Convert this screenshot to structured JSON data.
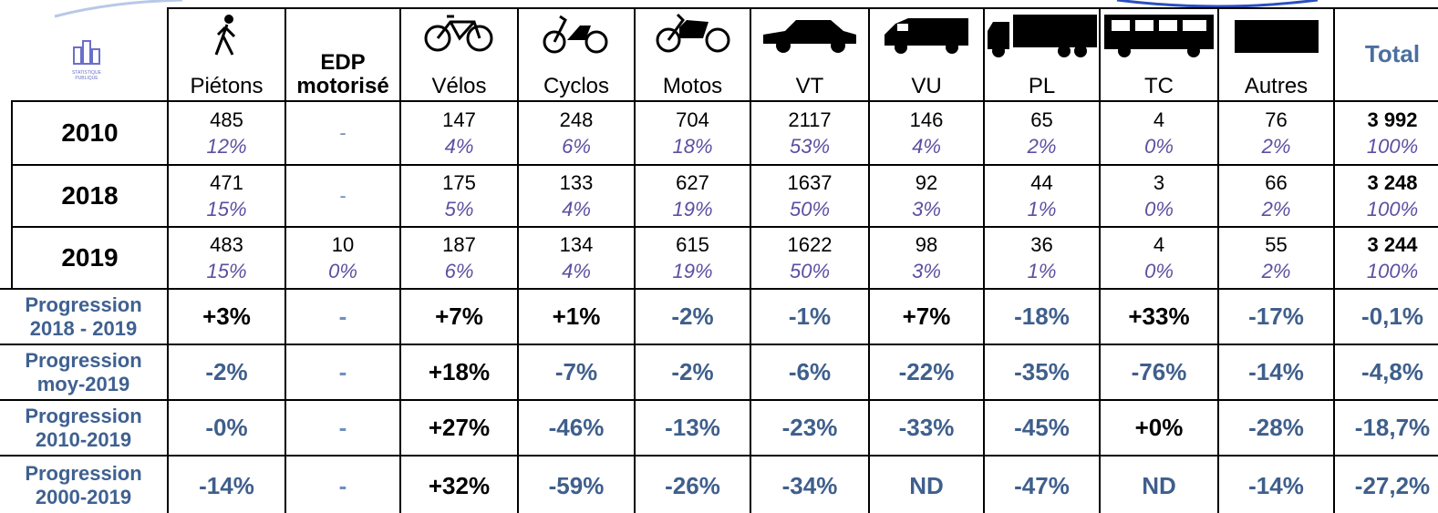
{
  "logo": "STATISTIQUE PUBLIQUE",
  "header": {
    "columns": [
      "Piétons",
      "EDP\nmotorisé",
      "Vélos",
      "Cyclos",
      "Motos",
      "VT",
      "VU",
      "PL",
      "TC",
      "Autres",
      "Total"
    ]
  },
  "rows": [
    {
      "label": "2010",
      "counts": [
        "485",
        "-",
        "147",
        "248",
        "704",
        "2117",
        "146",
        "65",
        "4",
        "76",
        "3 992"
      ],
      "shares": [
        "12%",
        "",
        "4%",
        "6%",
        "18%",
        "53%",
        "4%",
        "2%",
        "0%",
        "2%",
        "100%"
      ]
    },
    {
      "label": "2018",
      "counts": [
        "471",
        "-",
        "175",
        "133",
        "627",
        "1637",
        "92",
        "44",
        "3",
        "66",
        "3 248"
      ],
      "shares": [
        "15%",
        "",
        "5%",
        "4%",
        "19%",
        "50%",
        "3%",
        "1%",
        "0%",
        "2%",
        "100%"
      ]
    },
    {
      "label": "2019",
      "counts": [
        "483",
        "10",
        "187",
        "134",
        "615",
        "1622",
        "98",
        "36",
        "4",
        "55",
        "3 244"
      ],
      "shares": [
        "15%",
        "0%",
        "6%",
        "4%",
        "19%",
        "50%",
        "3%",
        "1%",
        "0%",
        "2%",
        "100%"
      ]
    }
  ],
  "progressions": [
    {
      "label": "Progression\n2018 - 2019",
      "values": [
        "+3%",
        "-",
        "+7%",
        "+1%",
        "-2%",
        "-1%",
        "+7%",
        "-18%",
        "+33%",
        "-17%",
        "-0,1%"
      ]
    },
    {
      "label": "Progression\nmoy-2019",
      "values": [
        "-2%",
        "-",
        "+18%",
        "-7%",
        "-2%",
        "-6%",
        "-22%",
        "-35%",
        "-76%",
        "-14%",
        "-4,8%"
      ]
    },
    {
      "label": "Progression\n2010-2019",
      "values": [
        "-0%",
        "-",
        "+27%",
        "-46%",
        "-13%",
        "-23%",
        "-33%",
        "-45%",
        "+0%",
        "-28%",
        "-18,7%"
      ]
    },
    {
      "label": "Progression\n2000-2019",
      "values": [
        "-14%",
        "-",
        "+32%",
        "-59%",
        "-26%",
        "-34%",
        "ND",
        "-47%",
        "ND",
        "-14%",
        "-27,2%"
      ]
    }
  ]
}
